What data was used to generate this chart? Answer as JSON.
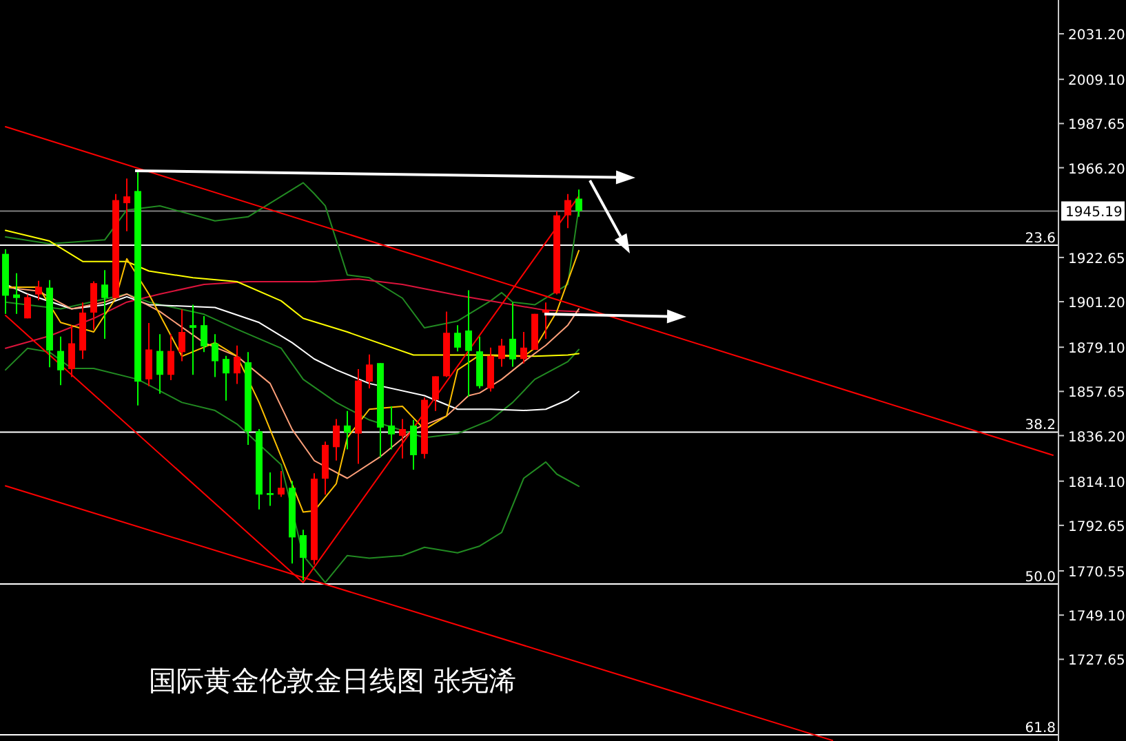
{
  "chart_data": {
    "type": "candlestick",
    "title": "国际黄金伦敦金日线图 张尧浠",
    "tick_labels": "y",
    "ylim": [
      1688,
      2047.6
    ],
    "yticks": [
      {
        "value": 2031.2,
        "label": "2031.20"
      },
      {
        "value": 2009.1,
        "label": "2009.10"
      },
      {
        "value": 1987.65,
        "label": "1987.65"
      },
      {
        "value": 1966.2,
        "label": "1966.20"
      },
      {
        "value": 1922.65,
        "label": "1922.65"
      },
      {
        "value": 1901.2,
        "label": "1901.20"
      },
      {
        "value": 1879.1,
        "label": "1879.10"
      },
      {
        "value": 1857.65,
        "label": "1857.65"
      },
      {
        "value": 1836.2,
        "label": "1836.20"
      },
      {
        "value": 1814.1,
        "label": "1814.10"
      },
      {
        "value": 1792.65,
        "label": "1792.65"
      },
      {
        "value": 1770.55,
        "label": "1770.55"
      },
      {
        "value": 1749.1,
        "label": "1749.10"
      },
      {
        "value": 1727.65,
        "label": "1727.65"
      }
    ],
    "categories": [
      null,
      null,
      null,
      null,
      null,
      null,
      null,
      null,
      null,
      null,
      null,
      null,
      null,
      null,
      null,
      null,
      null,
      null,
      null,
      null,
      null,
      null,
      null,
      null,
      null,
      null,
      null,
      null,
      null,
      null,
      null,
      null,
      null,
      null,
      null,
      null,
      null,
      null,
      null,
      null,
      null,
      null,
      null,
      null,
      null,
      null,
      null,
      null,
      null,
      null,
      null,
      null,
      null,
      null,
      null,
      null,
      null,
      null,
      null,
      null,
      null,
      null,
      null,
      null,
      null,
      null,
      null,
      null,
      null,
      null,
      null,
      null,
      null,
      null,
      null,
      null,
      null,
      null,
      null,
      null,
      null,
      null,
      null,
      null,
      null,
      null,
      null,
      null,
      null,
      null,
      null,
      null,
      null,
      null,
      null,
      null
    ],
    "ohlc": [
      [
        1924.4,
        1926.6,
        1895.3,
        1904.1
      ],
      [
        1904.7,
        1915.0,
        1895.3,
        1903.0
      ],
      [
        1893.1,
        1904.7,
        1893.1,
        1903.4
      ],
      [
        1904.7,
        1911.3,
        1901.9,
        1908.4
      ],
      [
        1908.0,
        1911.7,
        1869.4,
        1877.5
      ],
      [
        1877.3,
        1884.3,
        1860.7,
        1867.9
      ],
      [
        1868.5,
        1889.8,
        1864.6,
        1881.0
      ],
      [
        1877.5,
        1900.8,
        1873.4,
        1895.9
      ],
      [
        1895.9,
        1911.1,
        1887.6,
        1910.2
      ],
      [
        1909.5,
        1916.5,
        1883.2,
        1903.0
      ],
      [
        1903.0,
        1953.4,
        1903.0,
        1950.5
      ],
      [
        1949.0,
        1961.0,
        1935.4,
        1952.3
      ],
      [
        1954.9,
        1965.4,
        1850.8,
        1862.4
      ],
      [
        1863.5,
        1890.9,
        1860.2,
        1878.0
      ],
      [
        1877.3,
        1885.4,
        1856.5,
        1865.7
      ],
      [
        1865.7,
        1885.4,
        1863.1,
        1877.3
      ],
      [
        1876.7,
        1897.5,
        1872.3,
        1886.5
      ],
      [
        1889.8,
        1899.7,
        1865.7,
        1888.5
      ],
      [
        1889.8,
        1894.2,
        1876.7,
        1879.5
      ],
      [
        1881.0,
        1885.4,
        1864.6,
        1872.3
      ],
      [
        1873.4,
        1874.9,
        1853.2,
        1866.4
      ],
      [
        1866.4,
        1879.9,
        1861.3,
        1874.5
      ],
      [
        1871.8,
        1876.7,
        1831.7,
        1838.3
      ],
      [
        1838.3,
        1839.4,
        1800.4,
        1807.6
      ],
      [
        1808.3,
        1818.3,
        1802.1,
        1807.4
      ],
      [
        1807.6,
        1819.0,
        1806.5,
        1810.9
      ],
      [
        1810.9,
        1814.2,
        1774.1,
        1786.8
      ],
      [
        1787.9,
        1790.5,
        1766.0,
        1776.9
      ],
      [
        1775.8,
        1817.9,
        1773.6,
        1815.3
      ],
      [
        1815.3,
        1833.3,
        1807.6,
        1831.7
      ],
      [
        1830.6,
        1844.2,
        1824.1,
        1841.1
      ],
      [
        1841.1,
        1848.2,
        1829.5,
        1837.7
      ],
      [
        1837.2,
        1868.5,
        1822.5,
        1862.9
      ],
      [
        1862.4,
        1875.6,
        1859.1,
        1870.7
      ],
      [
        1871.4,
        1871.4,
        1825.6,
        1840.1
      ],
      [
        1841.1,
        1850.4,
        1829.5,
        1836.8
      ],
      [
        1836.1,
        1844.2,
        1825.1,
        1839.4
      ],
      [
        1841.1,
        1843.8,
        1819.7,
        1826.7
      ],
      [
        1827.3,
        1854.7,
        1825.1,
        1853.6
      ],
      [
        1853.6,
        1865.0,
        1848.2,
        1865.0
      ],
      [
        1865.0,
        1896.4,
        1864.6,
        1886.1
      ],
      [
        1886.1,
        1889.8,
        1877.1,
        1878.9
      ],
      [
        1887.2,
        1906.7,
        1855.2,
        1877.3
      ],
      [
        1877.1,
        1884.3,
        1859.1,
        1860.2
      ],
      [
        1859.1,
        1878.9,
        1857.6,
        1874.9
      ],
      [
        1873.4,
        1883.2,
        1869.6,
        1879.9
      ],
      [
        1883.2,
        1900.8,
        1869.6,
        1873.2
      ],
      [
        1873.4,
        1886.5,
        1871.2,
        1878.9
      ],
      [
        1877.8,
        1895.3,
        1877.8,
        1895.3
      ],
      [
        1895.9,
        1900.8,
        1883.2,
        1897.3
      ],
      [
        1905.2,
        1945.1,
        1904.7,
        1943.1
      ],
      [
        1943.1,
        1953.4,
        1936.9,
        1950.5
      ],
      [
        1951.2,
        1955.6,
        1942.4,
        1945.19
      ],
      null,
      null,
      null,
      null,
      null,
      null,
      null,
      null,
      null,
      null,
      null,
      null,
      null,
      null,
      null,
      null,
      null,
      null,
      null,
      null,
      null,
      null,
      null,
      null,
      null,
      null,
      null,
      null,
      null,
      null,
      null,
      null,
      null,
      null,
      null,
      null,
      null,
      null,
      null,
      null,
      null,
      null,
      null
    ],
    "colors": [
      "#00ff00",
      "#00ff00",
      "#ff0000",
      "#ff0000",
      "#00ff00",
      "#00ff00",
      "#ff0000",
      "#ff0000",
      "#ff0000",
      "#00ff00",
      "#ff0000",
      "#ff0000",
      "#00ff00",
      "#ff0000",
      "#00ff00",
      "#ff0000",
      "#ff0000",
      "#00ff00",
      "#00ff00",
      "#00ff00",
      "#00ff00",
      "#ff0000",
      "#00ff00",
      "#00ff00",
      "#00ff00",
      "#ff0000",
      "#00ff00",
      "#00ff00",
      "#ff0000",
      "#ff0000",
      "#ff0000",
      "#00ff00",
      "#ff0000",
      "#ff0000",
      "#00ff00",
      "#00ff00",
      "#ff0000",
      "#00ff00",
      "#ff0000",
      "#ff0000",
      "#ff0000",
      "#00ff00",
      "#00ff00",
      "#00ff00",
      "#ff0000",
      "#ff0000",
      "#00ff00",
      "#ff0000",
      "#ff0000",
      "#ff0000",
      "#ff0000",
      "#ff0000",
      "#00ff00",
      null,
      null,
      null,
      null,
      null,
      null,
      null,
      null,
      null,
      null,
      null,
      null,
      null,
      null,
      null,
      null,
      null,
      null,
      null,
      null,
      null,
      null,
      null,
      null,
      null,
      null,
      null,
      null,
      null,
      null,
      null,
      null,
      null,
      null,
      null,
      null,
      null,
      null,
      null,
      null,
      null,
      null,
      null
    ],
    "series": [
      {
        "type": "line",
        "color": "#228b22",
        "values": [
          1932.6,
          null,
          null,
          null,
          1929.3,
          null,
          null,
          null,
          null,
          1931.2,
          null,
          1945.7,
          null,
          null,
          1947.7,
          null,
          null,
          null,
          null,
          1940.4,
          null,
          null,
          1942.4,
          null,
          null,
          null,
          null,
          1958.9,
          1953.6,
          1947.7,
          null,
          1914.2,
          null,
          1912.8,
          null,
          null,
          1902.9,
          null,
          1888.5,
          null,
          null,
          1891.8,
          null,
          null,
          1901.6,
          1905.6,
          1901.0,
          null,
          1899.7,
          null,
          null,
          1909.6,
          1947.0,
          null,
          null,
          null,
          null,
          null,
          null,
          null,
          null,
          null,
          null,
          null,
          null,
          null,
          null,
          null,
          null,
          null,
          null,
          null,
          null,
          null,
          null,
          null,
          null,
          null,
          null,
          null,
          null,
          null,
          null,
          null,
          null,
          null,
          null,
          null,
          null,
          null,
          null,
          null,
          null,
          null,
          null,
          null
        ]
      },
      {
        "type": "line",
        "color": "#228b22",
        "values": [
          1901.0,
          null,
          null,
          null,
          null,
          1897.7,
          null,
          null,
          null,
          null,
          null,
          1904.9,
          null,
          1901.0,
          null,
          null,
          null,
          null,
          1895.1,
          null,
          null,
          1887.8,
          null,
          null,
          null,
          1878.6,
          null,
          1863.5,
          null,
          null,
          1852.3,
          null,
          null,
          1843.8,
          null,
          null,
          null,
          null,
          1835.2,
          null,
          null,
          1837.2,
          null,
          null,
          1843.8,
          null,
          1852.3,
          null,
          1863.5,
          null,
          null,
          1872.1,
          1878.0,
          null,
          null,
          null,
          null,
          null,
          null,
          null,
          null,
          null,
          null,
          null,
          null,
          null,
          null,
          null,
          null,
          null,
          null,
          null,
          null,
          null,
          null,
          null,
          null,
          null,
          null,
          null,
          null,
          null,
          null,
          null,
          null,
          null,
          null,
          null,
          null,
          null,
          null,
          null,
          null,
          null,
          null,
          null
        ]
      },
      {
        "type": "line",
        "color": "#228b22",
        "values": [
          1868.1,
          null,
          1878.6,
          null,
          1876.7,
          null,
          1868.8,
          null,
          1868.8,
          null,
          null,
          null,
          1863.5,
          null,
          null,
          null,
          1852.3,
          null,
          null,
          1848.4,
          null,
          1841.8,
          null,
          null,
          null,
          1822.1,
          null,
          1778.0,
          null,
          1764.9,
          null,
          1778.0,
          null,
          1776.7,
          null,
          null,
          1778.0,
          null,
          1782.0,
          null,
          null,
          1779.3,
          null,
          1782.6,
          null,
          1789.2,
          null,
          1815.5,
          null,
          1823.4,
          1817.5,
          null,
          1811.6,
          null,
          null,
          null,
          null,
          null,
          null,
          null,
          null,
          null,
          null,
          null,
          null,
          null,
          null,
          null,
          null,
          null,
          null,
          null,
          null,
          null,
          null,
          null,
          null,
          null,
          null,
          null,
          null,
          null,
          null,
          null,
          null,
          null,
          null,
          null,
          null,
          null,
          null,
          null,
          null,
          null,
          null,
          null
        ]
      },
      {
        "type": "line",
        "color": "#dc143c",
        "values": [
          1878.6,
          null,
          null,
          null,
          1884.6,
          null,
          null,
          null,
          1893.1,
          null,
          null,
          1901.0,
          null,
          null,
          1904.9,
          null,
          null,
          null,
          1909.6,
          null,
          null,
          null,
          1910.9,
          null,
          null,
          null,
          null,
          null,
          1910.9,
          null,
          null,
          null,
          1912.2,
          null,
          null,
          null,
          1909.6,
          null,
          null,
          null,
          null,
          1904.3,
          null,
          null,
          null,
          null,
          1899.7,
          null,
          null,
          1897.0,
          null,
          null,
          1896.4,
          null,
          null,
          null,
          null,
          null,
          null,
          null,
          null,
          null,
          null,
          null,
          null,
          null,
          null,
          null,
          null,
          null,
          null,
          null,
          null,
          null,
          null,
          null,
          null,
          null,
          null,
          null,
          null,
          null,
          null,
          null,
          null,
          null,
          null,
          null,
          null,
          null,
          null,
          null,
          null,
          null,
          null,
          null
        ]
      },
      {
        "type": "line",
        "color": "#ffff00",
        "values": [
          1935.8,
          null,
          null,
          null,
          1930.6,
          null,
          null,
          1920.7,
          null,
          null,
          null,
          1920.7,
          null,
          1916.1,
          null,
          null,
          null,
          1912.8,
          null,
          null,
          null,
          1910.9,
          null,
          null,
          null,
          1901.6,
          null,
          1893.1,
          null,
          null,
          null,
          1886.5,
          null,
          null,
          null,
          null,
          null,
          1875.3,
          null,
          null,
          null,
          null,
          null,
          null,
          1875.3,
          null,
          null,
          null,
          1874.7,
          null,
          null,
          1875.3,
          1876.0,
          null,
          null,
          null,
          null,
          null,
          null,
          null,
          null,
          null,
          null,
          null,
          null,
          null,
          null,
          null,
          null,
          null,
          null,
          null,
          null,
          null,
          null,
          null,
          null,
          null,
          null,
          null,
          null,
          null,
          null,
          null,
          null,
          null,
          null,
          null,
          null,
          null,
          null,
          null,
          null,
          null,
          null,
          null
        ]
      },
      {
        "type": "line",
        "color": "#ffffff",
        "values": [
          1909.6,
          null,
          1904.9,
          null,
          null,
          null,
          1897.7,
          null,
          null,
          1899.7,
          null,
          1903.6,
          null,
          1899.7,
          null,
          null,
          null,
          null,
          null,
          1898.4,
          null,
          null,
          null,
          1891.1,
          null,
          null,
          1881.3,
          null,
          1873.4,
          null,
          1868.1,
          null,
          null,
          1861.5,
          null,
          null,
          null,
          null,
          1855.6,
          null,
          null,
          1849.0,
          null,
          null,
          1849.0,
          null,
          null,
          1848.4,
          null,
          1849.0,
          null,
          1853.6,
          1857.6,
          null,
          null,
          null,
          null,
          null,
          null,
          null,
          null,
          null,
          null,
          null,
          null,
          null,
          null,
          null,
          null,
          null,
          null,
          null,
          null,
          null,
          null,
          null,
          null,
          null,
          null,
          null,
          null,
          null,
          null,
          null,
          null,
          null,
          null,
          null,
          null,
          null,
          null,
          null,
          null,
          null,
          null,
          null
        ]
      },
      {
        "type": "line",
        "color": "#ffa07a",
        "values": [
          1908.2,
          null,
          null,
          1906.3,
          null,
          null,
          1897.7,
          null,
          null,
          1901.0,
          null,
          1904.9,
          null,
          null,
          1896.4,
          null,
          null,
          null,
          1881.3,
          null,
          null,
          1874.7,
          null,
          null,
          1861.5,
          null,
          1839.2,
          null,
          1824.1,
          null,
          null,
          1815.5,
          null,
          null,
          1826.0,
          null,
          null,
          1839.2,
          null,
          null,
          1845.7,
          null,
          1855.6,
          1856.9,
          null,
          1863.5,
          null,
          1872.1,
          null,
          1880.0,
          null,
          1889.8,
          1897.7,
          null,
          null,
          null,
          null,
          null,
          null,
          null,
          null,
          null,
          null,
          null,
          null,
          null,
          null,
          null,
          null,
          null,
          null,
          null,
          null,
          null,
          null,
          null,
          null,
          null,
          null,
          null,
          null,
          null,
          null,
          null,
          null,
          null,
          null,
          null,
          null,
          null,
          null,
          null,
          null,
          null,
          null,
          null
        ]
      },
      {
        "type": "line",
        "color": "#ffc000",
        "values": [
          1908.2,
          null,
          null,
          1908.2,
          null,
          1891.1,
          null,
          null,
          1886.5,
          null,
          1902.9,
          1922.0,
          null,
          1904.9,
          null,
          null,
          1874.7,
          null,
          null,
          1881.3,
          null,
          1874.7,
          null,
          1852.3,
          null,
          1826.0,
          null,
          1799.1,
          1799.7,
          null,
          1812.9,
          1835.2,
          null,
          1849.0,
          null,
          null,
          1850.4,
          null,
          1839.2,
          null,
          1845.7,
          1868.1,
          null,
          1875.3,
          null,
          1874.7,
          null,
          1874.7,
          1878.6,
          null,
          1896.4,
          null,
          1926.0,
          null,
          null,
          null,
          null,
          null,
          null,
          null,
          null,
          null,
          null,
          null,
          null,
          null,
          null,
          null,
          null,
          null,
          null,
          null,
          null,
          null,
          null,
          null,
          null,
          null,
          null,
          null,
          null,
          null,
          null,
          null,
          null,
          null,
          null,
          null,
          null,
          null,
          null,
          null,
          null,
          null,
          null,
          null
        ]
      },
      {
        "type": "line",
        "color": "#ff0000",
        "values": [
          1986.1,
          null,
          null,
          null,
          null,
          null,
          null,
          null,
          null,
          null,
          null,
          null,
          null,
          null,
          null,
          null,
          null,
          null,
          null,
          null,
          null,
          null,
          null,
          null,
          null,
          null,
          null,
          null,
          null,
          null,
          null,
          null,
          null,
          null,
          null,
          null,
          null,
          null,
          null,
          null,
          null,
          null,
          null,
          null,
          null,
          null,
          null,
          null,
          null,
          null,
          null,
          null,
          null,
          null,
          null,
          null,
          null,
          null,
          null,
          null,
          null,
          null,
          null,
          null,
          null,
          null,
          null,
          null,
          null,
          null,
          null,
          null,
          null,
          null,
          null,
          null,
          null,
          null,
          null,
          null,
          null,
          null,
          null,
          null,
          null,
          null,
          null,
          null,
          null,
          null,
          null,
          null,
          null,
          null,
          null,
          1826.7
        ]
      },
      {
        "type": "line",
        "color": "#ff0000",
        "values": [
          1811.8,
          null,
          null,
          null,
          null,
          null,
          null,
          null,
          null,
          null,
          null,
          null,
          null,
          null,
          null,
          null,
          null,
          null,
          null,
          null,
          null,
          null,
          null,
          null,
          null,
          null,
          null,
          null,
          null,
          null,
          null,
          null,
          null,
          null,
          null,
          null,
          null,
          null,
          null,
          null,
          null,
          null,
          null,
          null,
          null,
          null,
          null,
          null,
          null,
          null,
          null,
          null,
          null,
          null,
          null,
          null,
          null,
          null,
          null,
          null,
          null,
          null,
          null,
          null,
          null,
          null,
          null,
          null,
          null,
          null,
          null,
          null,
          null,
          null,
          null,
          1688.3,
          null,
          null,
          null,
          null,
          null,
          null,
          null,
          null,
          null,
          null,
          null,
          null,
          null,
          null,
          null,
          null,
          null,
          null,
          null,
          null
        ]
      },
      {
        "type": "line",
        "color": "#ff0000",
        "values": [
          1894.5,
          null,
          null,
          null,
          null,
          null,
          null,
          null,
          null,
          null,
          null,
          null,
          null,
          null,
          null,
          null,
          null,
          null,
          null,
          null,
          null,
          null,
          null,
          null,
          null,
          null,
          null,
          1764.9,
          null,
          null,
          null,
          null,
          null,
          null,
          null,
          null,
          null,
          null,
          null,
          null,
          null,
          null,
          null,
          null,
          null,
          null,
          null,
          null,
          null,
          null,
          null,
          null,
          1952.4,
          null,
          null,
          null,
          null,
          null,
          null,
          null,
          null,
          null,
          null,
          null,
          null,
          null,
          null,
          null,
          null,
          null,
          null,
          null,
          null,
          null,
          null,
          null,
          null,
          null,
          null,
          null,
          null,
          null,
          null,
          null,
          null,
          null,
          null,
          null,
          null,
          null,
          null,
          null,
          null,
          null,
          null,
          null
        ]
      }
    ],
    "ref_lines": [
      {
        "axis": "y",
        "value": 1945.19,
        "label": "1945.19",
        "color": "#808080"
      },
      {
        "axis": "y",
        "value": 1928.6,
        "color": "#ffffff"
      },
      {
        "axis": "y",
        "value": 1837.9,
        "color": "#ffffff"
      },
      {
        "axis": "y",
        "value": 1764.2,
        "color": "#ffffff"
      },
      {
        "axis": "y",
        "value": 1691,
        "color": "#ffffff"
      }
    ],
    "annotations": [
      {
        "text": "23.6",
        "y": 1928.6
      },
      {
        "text": "38.2",
        "y": 1837.9
      },
      {
        "text": "50.0",
        "y": 1764.2
      },
      {
        "text": "61.8",
        "y": 1691
      }
    ]
  }
}
